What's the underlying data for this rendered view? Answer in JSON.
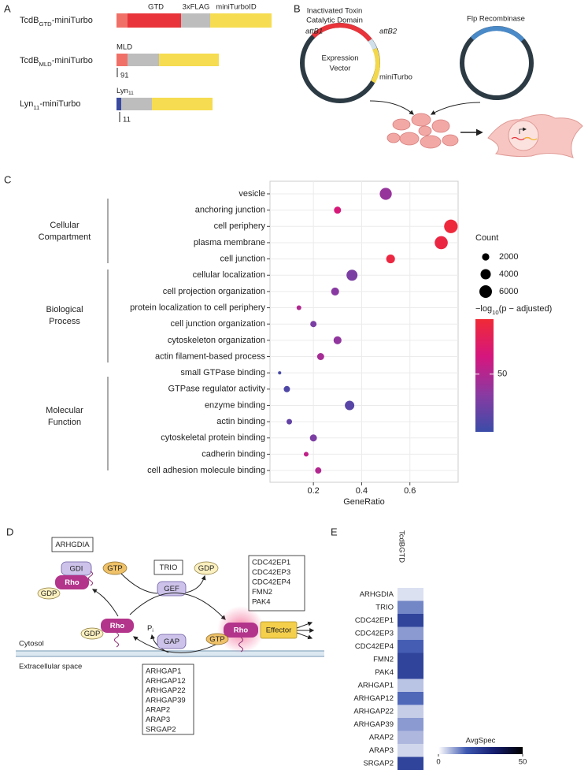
{
  "panel_a": {
    "letter": "A",
    "constructs": [
      {
        "name": {
          "main": "TcdB",
          "sub": "GTD",
          "rest": "-miniTurbo"
        },
        "domains": [
          "GTD",
          "3xFLAG",
          "miniTurboID"
        ]
      },
      {
        "name": {
          "main": "TcdB",
          "sub": "MLD",
          "rest": "-miniTurbo"
        },
        "domain": "MLD",
        "position": "91"
      },
      {
        "name": {
          "main": "Lyn",
          "sub": "11",
          "rest": "-miniTurbo"
        },
        "domain": {
          "main": "Lyn",
          "sub": "11"
        },
        "position": "11"
      }
    ]
  },
  "panel_b": {
    "letter": "B",
    "toxin_label": [
      "Inactivated Toxin",
      "Catalytic Domain"
    ],
    "attb1": "attB1",
    "attb2": "attB2",
    "vector": [
      "Expression",
      "Vector"
    ],
    "tag": "miniTurbo",
    "recombinase": "Flp Recombinase"
  },
  "panel_c": {
    "letter": "C",
    "type": "scatter",
    "categories": [
      "vesicle",
      "anchoring junction",
      "cell periphery",
      "plasma membrane",
      "cell junction",
      "cellular localization",
      "cell projection organization",
      "protein localization to cell periphery",
      "cell junction organization",
      "cytoskeleton organization",
      "actin filament-based process",
      "small GTPase binding",
      "GTPase regulator activity",
      "enzyme binding",
      "actin binding",
      "cytoskeletal protein binding",
      "cadherin binding",
      "cell adhesion molecule binding"
    ],
    "x": [
      0.5,
      0.3,
      0.77,
      0.73,
      0.52,
      0.36,
      0.29,
      0.14,
      0.2,
      0.3,
      0.23,
      0.06,
      0.09,
      0.35,
      0.1,
      0.2,
      0.17,
      0.22
    ],
    "count": [
      5500,
      1900,
      7000,
      6500,
      2900,
      4600,
      2400,
      850,
      1500,
      2400,
      1900,
      400,
      1500,
      3400,
      1150,
      1900,
      850,
      1500
    ],
    "neglog_p": [
      40,
      65,
      88,
      85,
      86,
      30,
      35,
      50,
      30,
      38,
      45,
      12,
      15,
      18,
      22,
      30,
      55,
      50
    ],
    "xlim": [
      0.02,
      0.8
    ],
    "xticks": [
      0.2,
      0.4,
      0.6
    ],
    "xlabel": "GeneRatio",
    "grid": true,
    "groups": [
      {
        "lines": [
          "Cellular",
          "Compartment"
        ]
      },
      {
        "lines": [
          "Biological",
          "Process"
        ]
      },
      {
        "lines": [
          "Molecular",
          "Function"
        ]
      }
    ],
    "size_title": "Count",
    "size_ticks": [
      2000,
      4000,
      6000
    ],
    "color_title": {
      "main": "−log",
      "sub": "10",
      "rest": "(p − adjusted)"
    },
    "clim": [
      8,
      90
    ],
    "cticks": [
      50
    ],
    "colors": [
      "#3b4ca8",
      "#8a3aa2",
      "#d5167e",
      "#f02a36"
    ]
  },
  "panel_d": {
    "letter": "D",
    "gdi_regulator": "ARHGDIA",
    "gdi": "GDI",
    "rho": "Rho",
    "gdp": "GDP",
    "gtp": "GTP",
    "gef_regulator": "TRIO",
    "gef": "GEF",
    "effectors": [
      "CDC42EP1",
      "CDC42EP3",
      "CDC42EP4",
      "FMN2",
      "PAK4"
    ],
    "gap": "GAP",
    "pi": {
      "main": "P",
      "sub": "i"
    },
    "effector": "Effector",
    "cytosol": "Cytosol",
    "extracellular": "Extracellular space",
    "gaps": [
      "ARHGAP1",
      "ARHGAP12",
      "ARHGAP22",
      "ARHGAP39",
      "ARAP2",
      "ARAP3",
      "SRGAP2"
    ]
  },
  "panel_e": {
    "letter": "E",
    "column": "TcdBGTD",
    "rows": [
      "ARHGDIA",
      "TRIO",
      "CDC42EP1",
      "CDC42EP3",
      "CDC42EP4",
      "FMN2",
      "PAK4",
      "ARHGAP1",
      "ARHGAP12",
      "ARHGAP22",
      "ARHGAP39",
      "ARAP2",
      "ARAP3",
      "SRGAP2"
    ],
    "values": [
      3,
      12,
      22,
      10,
      16,
      22,
      22,
      6,
      15,
      5,
      10,
      7,
      4,
      22
    ],
    "clim": [
      0,
      50
    ],
    "cticks": [
      0,
      50
    ],
    "colorbar_title": "AvgSpec",
    "colors": [
      "#ffffff",
      "#3d57b0",
      "#151d6e",
      "#000000"
    ]
  }
}
